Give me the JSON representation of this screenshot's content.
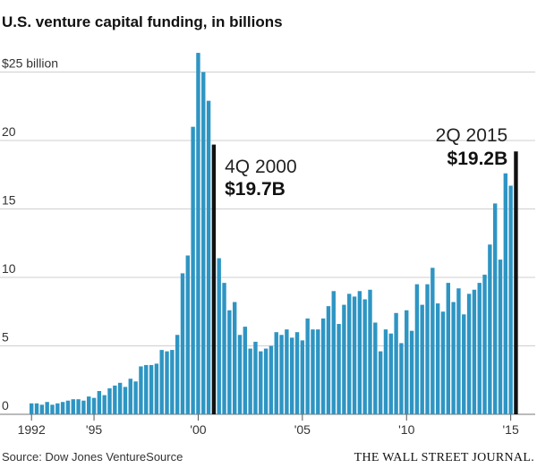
{
  "chart_data": {
    "type": "bar",
    "title": "U.S. venture capital funding, in billions",
    "source": "Source: Dow Jones VentureSource",
    "credit": "THE WALL STREET JOURNAL.",
    "bar_color": "#2e95c3",
    "highlight_color": "#111111",
    "grid": true,
    "ylim": [
      0,
      27
    ],
    "yticks": [
      {
        "value": 0,
        "label": "0"
      },
      {
        "value": 5,
        "label": "5"
      },
      {
        "value": 10,
        "label": "10"
      },
      {
        "value": 15,
        "label": "15"
      },
      {
        "value": 20,
        "label": "20"
      },
      {
        "value": 25,
        "label": "$25 billion"
      }
    ],
    "xticks": [
      {
        "year": 1992,
        "label": "1992"
      },
      {
        "year": 1995,
        "label": "'95"
      },
      {
        "year": 2000,
        "label": "'00"
      },
      {
        "year": 2005,
        "label": "'05"
      },
      {
        "year": 2010,
        "label": "'10"
      },
      {
        "year": 2015,
        "label": "'15"
      }
    ],
    "start_year": 1992,
    "start_quarter": 1,
    "values": [
      0.8,
      0.8,
      0.7,
      0.9,
      0.7,
      0.8,
      0.9,
      1.0,
      1.1,
      1.1,
      1.0,
      1.3,
      1.2,
      1.7,
      1.4,
      1.9,
      2.1,
      2.3,
      2.0,
      2.6,
      2.4,
      3.5,
      3.6,
      3.6,
      3.7,
      4.7,
      4.6,
      4.7,
      5.8,
      10.3,
      11.6,
      21.0,
      26.4,
      25.0,
      22.9,
      19.7,
      11.4,
      9.6,
      7.6,
      8.2,
      5.8,
      6.4,
      4.8,
      5.3,
      4.6,
      4.8,
      5.0,
      6.0,
      5.8,
      6.2,
      5.6,
      6.0,
      5.4,
      7.0,
      6.2,
      6.2,
      7.0,
      7.9,
      9.0,
      6.6,
      8.0,
      8.8,
      8.6,
      9.0,
      8.4,
      9.1,
      6.7,
      4.6,
      6.2,
      5.9,
      7.4,
      5.2,
      7.6,
      6.1,
      9.5,
      8.0,
      9.5,
      10.7,
      8.1,
      7.5,
      9.6,
      8.2,
      9.2,
      7.3,
      8.8,
      9.1,
      9.6,
      10.2,
      12.4,
      15.4,
      11.3,
      17.6,
      16.7,
      19.2
    ],
    "highlights": [
      {
        "index": 35,
        "period": "4Q 2000",
        "value_label": "$19.7B",
        "value": 19.7
      },
      {
        "index": 93,
        "period": "2Q 2015",
        "value_label": "$19.2B",
        "value": 19.2
      }
    ]
  }
}
